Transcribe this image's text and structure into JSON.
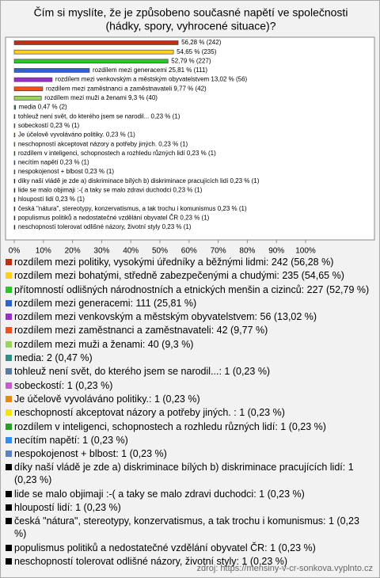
{
  "chart_data": {
    "type": "barh",
    "title": [
      "Čím si myslíte, že je způsobeno současné napětí ve společnosti",
      "(hádky, spory, vyhrocené situace)?"
    ],
    "categories": [
      "rozdílem mezi politiky, vysokými úředníky a běžnými lidmi: 242 (56,28 %)",
      "rozdílem mezi bohatými, středně zabezpečenými a chudými: 235 (54,65 %)",
      "přítomností odlišných národnostních a etnických menšin a cizinců: 227 (52,79 %)",
      "rozdílem mezi generacemi: 111 (25,81 %)",
      "rozdílem mezi venkovským a městským obyvatelstvem: 56 (13,02 %)",
      "rozdílem mezi zaměstnanci a zaměstnavateli: 42 (9,77 %)",
      "rozdílem mezi muži a ženami: 40 (9,3 %)",
      "media: 2 (0,47 %)",
      "tohleuž není svět, do kterého jsem se narodil...: 1 (0,23 %)",
      "sobeckostí: 1 (0,23 %)",
      "Je účelově  vyvoláváno politiky.: 1 (0,23 %)",
      "neschopností akceptovat názory a potřeby jiných. : 1 (0,23 %)",
      "rozdílem v inteligenci, schopnostech a rozhledu různých lidí: 1 (0,23 %)",
      "necítím napětí: 1 (0,23 %)",
      "nespokojenost + blbost: 1 (0,23 %)",
      "díky naší vládě je zde a) diskriminace bílých b) diskriminace pracujících lidí: 1 (0,23 %)",
      "lide se malo objimaji :-( a taky se malo zdravi duchodci: 1 (0,23 %)",
      "hloupostí lidí: 1 (0,23 %)",
      "česká \"nátura\", stereotypy, konzervatismus, a tak trochu i komunismus: 1 (0,23 %)",
      "populismus politiků a nedostatečné vzdělání obyvatel ČR: 1 (0,23 %)",
      "neschopností tolerovat odlišné názory, životní styly: 1 (0,23 %)"
    ],
    "values": [
      56.28,
      54.65,
      52.79,
      25.81,
      13.02,
      9.77,
      9.3,
      0.47,
      0.23,
      0.23,
      0.23,
      0.23,
      0.23,
      0.23,
      0.23,
      0.23,
      0.23,
      0.23,
      0.23,
      0.23,
      0.23
    ],
    "value_labels": [
      "56,28 % (242)",
      "54,65 % (235)",
      "52,79 % (227)",
      "rozdílem mezi generacemi 25,81 % (111)",
      "rozdílem mezi venkovským a městským obyvatelstvem 13,02 % (56)",
      "rozdílem mezi zaměstnanci a zaměstnavateli 9,77 % (42)",
      "rozdílem mezi muži a ženami 9,3 % (40)",
      "media 0,47 % (2)",
      "tohleuž není svět, do kterého jsem se narodil... 0,23 % (1)",
      "sobeckostí 0,23 % (1)",
      "Je účelově  vyvoláváno politiky. 0,23 % (1)",
      "neschopností akceptovat názory a potřeby jiných.  0,23 % (1)",
      "rozdílem v inteligenci, schopnostech a rozhledu různých lidí 0,23 % (1)",
      "necítím napětí 0,23 % (1)",
      "nespokojenost + blbost 0,23 % (1)",
      "díky naší vládě je zde a) diskriminace bílých b) diskriminace pracujících lidí 0,23 % (1)",
      "lide se malo objimaji :-( a taky se malo zdravi duchodci 0,23 % (1)",
      "hloupostí lidí 0,23 % (1)",
      "česká \"nátura\", stereotypy, konzervatismus, a tak trochu i komunismus 0,23 % (1)",
      "populismus politiků a nedostatečné vzdělání obyvatel ČR 0,23 % (1)",
      "neschopností tolerovat odlišné názory, životní styly 0,23 % (1)"
    ],
    "colors": [
      "#c0300f",
      "#ffd21a",
      "#2ec42e",
      "#2f62d0",
      "#9a2fd0",
      "#f0501e",
      "#9ad45a",
      "#2e8f86",
      "#5a78a0",
      "#c060c8",
      "#e08a10",
      "#f2e21a",
      "#2aa02a",
      "#2f8ef0",
      "#5a82c0",
      "#000000",
      "#000000",
      "#000000",
      "#000000",
      "#000000",
      "#000000"
    ],
    "xlim": [
      0,
      100
    ],
    "xticks": [
      {
        "value": 0,
        "label": "0%"
      },
      {
        "value": 10,
        "label": "10%"
      },
      {
        "value": 20,
        "label": "20%"
      },
      {
        "value": 30,
        "label": "30%"
      },
      {
        "value": 40,
        "label": "40%"
      },
      {
        "value": 50,
        "label": "50%"
      },
      {
        "value": 60,
        "label": "60%"
      },
      {
        "value": 70,
        "label": "70%"
      },
      {
        "value": 80,
        "label": "80%"
      },
      {
        "value": 90,
        "label": "90%"
      },
      {
        "value": 100,
        "label": "100%"
      }
    ],
    "grid": false,
    "source": "zdroj: https://mensiny-v-cr-sonkova.vyplnto.cz"
  }
}
